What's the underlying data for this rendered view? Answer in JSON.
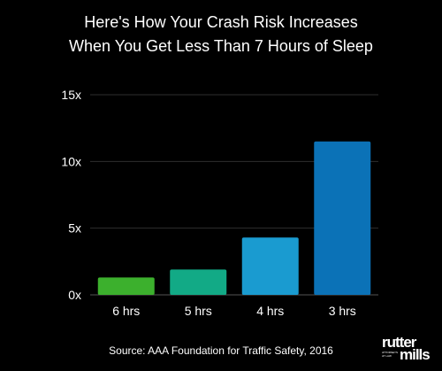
{
  "chart_data": {
    "type": "bar",
    "title": [
      "Here's How Your Crash Risk Increases",
      "When You Get Less Than 7 Hours of Sleep"
    ],
    "categories": [
      "6 hrs",
      "5 hrs",
      "4 hrs",
      "3 hrs"
    ],
    "values": [
      1.3,
      1.9,
      4.3,
      11.5
    ],
    "colors": [
      "#3cb02d",
      "#12aa86",
      "#1a9bd0",
      "#0b72b7"
    ],
    "ylim": [
      0,
      15
    ],
    "yticks": [
      0,
      5,
      10,
      15
    ],
    "ytick_labels": [
      "0x",
      "5x",
      "10x",
      "15x"
    ],
    "grid": true,
    "legend": "none"
  },
  "source": "Source: AAA Foundation for Traffic Safety, 2016",
  "logo": {
    "word1": "rutter",
    "word2": "mills",
    "tagline": "ATTORNEYS AT LAW"
  }
}
